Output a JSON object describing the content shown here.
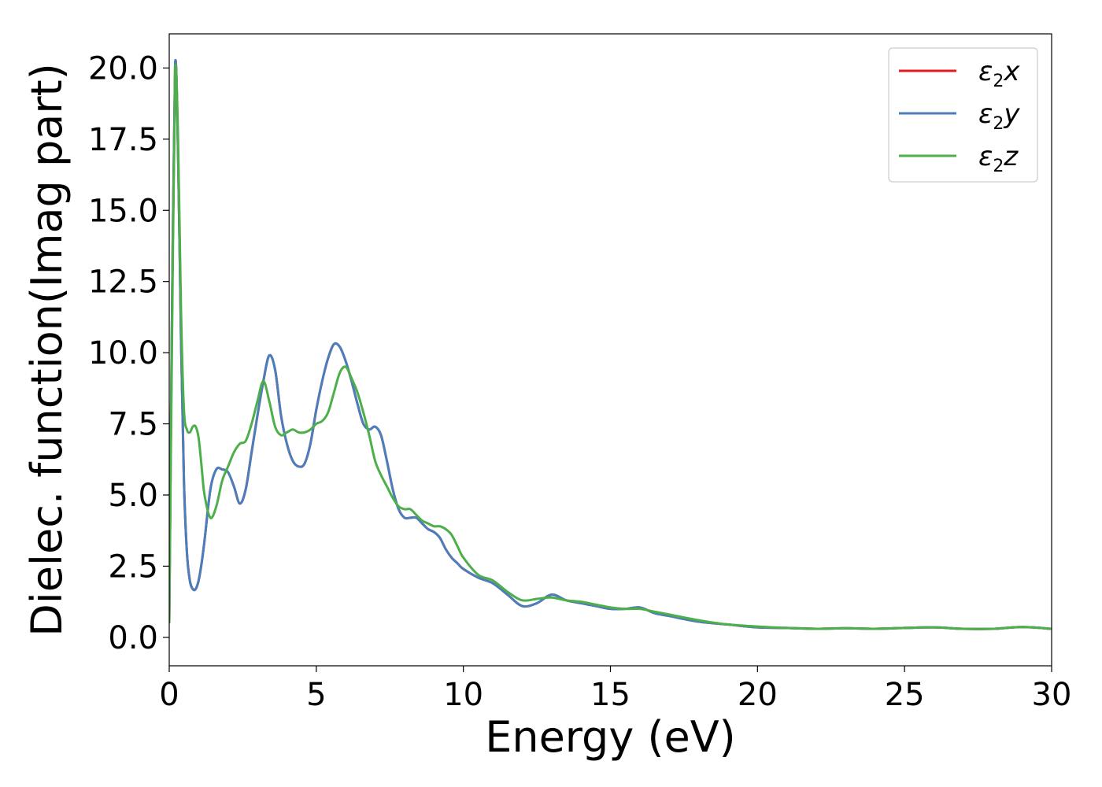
{
  "chart_data": {
    "type": "line",
    "title": "",
    "xlabel": "Energy (eV)",
    "ylabel": "Dielec. function(Imag part)",
    "xlim": [
      0,
      30
    ],
    "ylim": [
      -1.0,
      21.2
    ],
    "xticks": [
      0,
      5,
      10,
      15,
      20,
      25,
      30
    ],
    "xtick_labels": [
      "0",
      "5",
      "10",
      "15",
      "20",
      "25",
      "30"
    ],
    "yticks": [
      0,
      2.5,
      5,
      7.5,
      10,
      12.5,
      15,
      17.5,
      20
    ],
    "ytick_labels": [
      "0.0",
      "2.5",
      "5.0",
      "7.5",
      "10.0",
      "12.5",
      "15.0",
      "17.5",
      "20.0"
    ],
    "grid": false,
    "legend": "top-right",
    "series": [
      {
        "name": "ε₂x",
        "legend_base": "ε",
        "legend_sub": "2",
        "legend_tail": "x",
        "color": "#e41a1c",
        "x": [
          0,
          0.1,
          0.2,
          0.3,
          0.4,
          0.5,
          0.6,
          0.7,
          0.8,
          0.9,
          1.0,
          1.1,
          1.2,
          1.4,
          1.6,
          1.8,
          2.0,
          2.2,
          2.4,
          2.6,
          2.8,
          3.0,
          3.2,
          3.4,
          3.6,
          3.8,
          4.0,
          4.2,
          4.4,
          4.6,
          4.8,
          5.0,
          5.2,
          5.4,
          5.6,
          5.8,
          6.0,
          6.2,
          6.4,
          6.6,
          6.8,
          7.0,
          7.2,
          7.4,
          7.6,
          7.8,
          8.0,
          8.2,
          8.4,
          8.6,
          8.8,
          9.0,
          9.2,
          9.4,
          9.6,
          9.8,
          10.0,
          10.5,
          11.0,
          11.5,
          12.0,
          12.5,
          13.0,
          13.5,
          14.0,
          14.5,
          15.0,
          15.5,
          16.0,
          16.5,
          17.0,
          18.0,
          19.0,
          20.0,
          21.0,
          22.0,
          23.0,
          24.0,
          25.0,
          26.0,
          27.0,
          28.0,
          29.0,
          30.0
        ],
        "y": [
          0.5,
          12.0,
          20.1,
          17.0,
          10.5,
          5.5,
          3.0,
          2.0,
          1.7,
          1.7,
          2.0,
          2.6,
          3.4,
          5.2,
          5.9,
          5.9,
          5.8,
          5.3,
          4.7,
          5.2,
          6.5,
          7.8,
          9.0,
          9.9,
          9.4,
          7.8,
          6.8,
          6.2,
          6.0,
          6.1,
          6.8,
          8.0,
          9.0,
          9.8,
          10.3,
          10.2,
          9.7,
          9.0,
          8.2,
          7.5,
          7.3,
          7.4,
          7.1,
          6.2,
          5.2,
          4.5,
          4.2,
          4.2,
          4.2,
          4.0,
          3.8,
          3.7,
          3.5,
          3.1,
          2.8,
          2.6,
          2.4,
          2.1,
          1.9,
          1.5,
          1.1,
          1.2,
          1.5,
          1.3,
          1.2,
          1.1,
          1.0,
          1.0,
          1.05,
          0.85,
          0.75,
          0.55,
          0.45,
          0.35,
          0.33,
          0.3,
          0.32,
          0.3,
          0.33,
          0.35,
          0.3,
          0.3,
          0.36,
          0.3
        ]
      },
      {
        "name": "ε₂y",
        "legend_base": "ε",
        "legend_sub": "2",
        "legend_tail": "y",
        "color": "#4a7fbd",
        "x": [
          0,
          0.1,
          0.2,
          0.3,
          0.4,
          0.5,
          0.6,
          0.7,
          0.8,
          0.9,
          1.0,
          1.1,
          1.2,
          1.4,
          1.6,
          1.8,
          2.0,
          2.2,
          2.4,
          2.6,
          2.8,
          3.0,
          3.2,
          3.4,
          3.6,
          3.8,
          4.0,
          4.2,
          4.4,
          4.6,
          4.8,
          5.0,
          5.2,
          5.4,
          5.6,
          5.8,
          6.0,
          6.2,
          6.4,
          6.6,
          6.8,
          7.0,
          7.2,
          7.4,
          7.6,
          7.8,
          8.0,
          8.2,
          8.4,
          8.6,
          8.8,
          9.0,
          9.2,
          9.4,
          9.6,
          9.8,
          10.0,
          10.5,
          11.0,
          11.5,
          12.0,
          12.5,
          13.0,
          13.5,
          14.0,
          14.5,
          15.0,
          15.5,
          16.0,
          16.5,
          17.0,
          18.0,
          19.0,
          20.0,
          21.0,
          22.0,
          23.0,
          24.0,
          25.0,
          26.0,
          27.0,
          28.0,
          29.0,
          30.0
        ],
        "y": [
          0.5,
          12.0,
          20.1,
          17.0,
          10.5,
          5.5,
          3.0,
          2.0,
          1.7,
          1.7,
          2.0,
          2.6,
          3.4,
          5.2,
          5.9,
          5.9,
          5.8,
          5.3,
          4.7,
          5.2,
          6.5,
          7.8,
          9.0,
          9.9,
          9.4,
          7.8,
          6.8,
          6.2,
          6.0,
          6.1,
          6.8,
          8.0,
          9.0,
          9.8,
          10.3,
          10.2,
          9.7,
          9.0,
          8.2,
          7.5,
          7.3,
          7.4,
          7.1,
          6.2,
          5.2,
          4.5,
          4.2,
          4.2,
          4.2,
          4.0,
          3.8,
          3.7,
          3.5,
          3.1,
          2.8,
          2.6,
          2.4,
          2.1,
          1.9,
          1.5,
          1.1,
          1.2,
          1.5,
          1.3,
          1.2,
          1.1,
          1.0,
          1.0,
          1.05,
          0.85,
          0.75,
          0.55,
          0.45,
          0.35,
          0.33,
          0.3,
          0.32,
          0.3,
          0.33,
          0.35,
          0.3,
          0.3,
          0.36,
          0.3
        ]
      },
      {
        "name": "ε₂z",
        "legend_base": "ε",
        "legend_sub": "2",
        "legend_tail": "z",
        "color": "#4daf4a",
        "x": [
          0,
          0.1,
          0.2,
          0.3,
          0.4,
          0.5,
          0.6,
          0.7,
          0.8,
          0.9,
          1.0,
          1.1,
          1.2,
          1.4,
          1.6,
          1.8,
          2.0,
          2.2,
          2.4,
          2.6,
          2.8,
          3.0,
          3.2,
          3.4,
          3.6,
          3.8,
          4.0,
          4.2,
          4.4,
          4.6,
          4.8,
          5.0,
          5.2,
          5.4,
          5.6,
          5.8,
          6.0,
          6.2,
          6.4,
          6.6,
          6.8,
          7.0,
          7.2,
          7.4,
          7.6,
          7.8,
          8.0,
          8.2,
          8.4,
          8.6,
          8.8,
          9.0,
          9.2,
          9.4,
          9.6,
          9.8,
          10.0,
          10.5,
          11.0,
          11.5,
          12.0,
          12.5,
          13.0,
          13.5,
          14.0,
          14.5,
          15.0,
          15.5,
          16.0,
          16.5,
          17.0,
          18.0,
          19.0,
          20.0,
          21.0,
          22.0,
          23.0,
          24.0,
          25.0,
          26.0,
          27.0,
          28.0,
          29.0,
          30.0
        ],
        "y": [
          0.5,
          11.0,
          19.8,
          17.5,
          11.5,
          8.0,
          7.3,
          7.2,
          7.4,
          7.4,
          7.0,
          6.0,
          5.0,
          4.2,
          4.6,
          5.5,
          6.0,
          6.5,
          6.8,
          6.9,
          7.5,
          8.3,
          9.0,
          8.3,
          7.4,
          7.1,
          7.2,
          7.3,
          7.2,
          7.2,
          7.3,
          7.5,
          7.6,
          7.9,
          8.6,
          9.3,
          9.5,
          9.1,
          8.6,
          7.9,
          7.1,
          6.2,
          5.7,
          5.3,
          4.9,
          4.6,
          4.5,
          4.5,
          4.3,
          4.1,
          4.0,
          3.9,
          3.9,
          3.8,
          3.6,
          3.2,
          2.8,
          2.2,
          2.0,
          1.6,
          1.3,
          1.35,
          1.4,
          1.3,
          1.25,
          1.15,
          1.05,
          1.0,
          1.0,
          0.9,
          0.8,
          0.6,
          0.45,
          0.38,
          0.33,
          0.3,
          0.32,
          0.3,
          0.33,
          0.35,
          0.3,
          0.3,
          0.36,
          0.3
        ]
      }
    ]
  }
}
